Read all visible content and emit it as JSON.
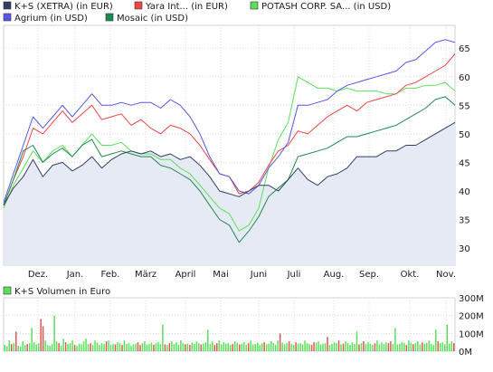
{
  "chart_data": [
    {
      "type": "line",
      "legend": [
        {
          "name": "K+S (XETRA) (in EUR)",
          "color": "#2f3e66"
        },
        {
          "name": "Yara Int... (in EUR)",
          "color": "#ee4444"
        },
        {
          "name": "POTASH CORP. SA... (in USD)",
          "color": "#5ae05a"
        },
        {
          "name": "Agrium (in USD)",
          "color": "#5555e8"
        },
        {
          "name": "Mosaic (in USD)",
          "color": "#1e8a4e"
        }
      ],
      "x_ticks": [
        "Dez.",
        "Jan.",
        "Feb.",
        "März",
        "April",
        "Mai",
        "Juni",
        "Juli",
        "Aug.",
        "Sep.",
        "Okt.",
        "Nov."
      ],
      "y_ticks": [
        "30",
        "35",
        "40",
        "45",
        "50",
        "55",
        "60",
        "65"
      ],
      "ylim": [
        27,
        69
      ],
      "grid": true,
      "series": [
        {
          "name": "K+S (XETRA) (in EUR)",
          "color": "#2f3e66",
          "area_fill": true,
          "values": [
            37.5,
            40.5,
            42.5,
            45.5,
            42.5,
            44.5,
            45,
            43.5,
            44.5,
            46,
            44,
            45.5,
            46.5,
            47,
            46.5,
            47,
            46,
            46.5,
            45.5,
            46,
            44.5,
            42.5,
            40,
            39.5,
            39,
            40,
            41,
            41,
            40,
            42,
            44,
            42,
            41,
            42.5,
            43,
            44,
            46,
            46,
            46,
            47,
            47,
            48,
            48,
            49,
            50,
            51,
            52
          ]
        },
        {
          "name": "Yara Int... (in EUR)",
          "color": "#ee4444",
          "values": [
            37.5,
            42,
            46,
            51,
            50,
            52,
            54,
            52,
            53.5,
            55,
            52.5,
            53,
            53.5,
            51.5,
            52.5,
            51,
            50,
            51.5,
            51,
            50,
            48,
            45.5,
            43,
            42.5,
            39.5,
            40,
            41.5,
            44.5,
            47,
            48,
            50.5,
            50,
            51.5,
            53,
            54,
            55,
            54,
            55.5,
            56,
            56.5,
            57,
            58.5,
            59,
            60,
            61,
            62,
            64
          ]
        },
        {
          "name": "POTASH CORP. SA... (in USD)",
          "color": "#5ae05a",
          "values": [
            37,
            41,
            44,
            47,
            45,
            47,
            48,
            46,
            48,
            50,
            48,
            48,
            48.5,
            47,
            46.5,
            46.5,
            45.5,
            45.5,
            44,
            43,
            41,
            39,
            37,
            36,
            33,
            34,
            37,
            44,
            49,
            52,
            60,
            59,
            58,
            58,
            57.5,
            58,
            57.5,
            57.5,
            57.5,
            57,
            57,
            58,
            58,
            58.5,
            58.5,
            59,
            57.5
          ]
        },
        {
          "name": "Agrium (in USD)",
          "color": "#5555e8",
          "values": [
            38,
            43,
            48,
            53,
            51,
            53,
            55,
            53,
            55,
            57,
            55,
            55,
            55.5,
            55,
            55.5,
            55.5,
            54.5,
            56,
            55,
            53,
            50,
            46,
            43,
            42.5,
            40,
            39.5,
            41,
            44,
            46,
            48.5,
            55,
            55,
            55.5,
            56,
            57.5,
            58.5,
            59,
            59.5,
            60,
            60.5,
            61,
            62.5,
            63,
            64.5,
            66,
            66.5,
            66
          ]
        },
        {
          "name": "Mosaic (in USD)",
          "color": "#1e8a4e",
          "values": [
            37.5,
            42,
            47,
            48,
            45,
            46.5,
            47.5,
            46,
            48,
            49,
            46,
            46.5,
            47,
            46.5,
            46,
            46,
            44.5,
            44,
            43,
            42,
            40,
            37.5,
            35,
            34,
            31,
            33,
            35.5,
            39,
            40.5,
            42,
            46,
            46.5,
            47,
            47.5,
            48.5,
            49.5,
            49.5,
            50,
            50.5,
            51,
            51.5,
            52.5,
            53.5,
            54.5,
            56,
            56.5,
            55
          ]
        }
      ]
    },
    {
      "type": "bar",
      "legend": [
        {
          "name": "K+S Volumen in Euro",
          "color": "#5ae05a"
        }
      ],
      "y_ticks": [
        "0M",
        "100M",
        "200M",
        "300M"
      ],
      "ylim": [
        0,
        300
      ],
      "grid": true,
      "series": [
        {
          "name": "K+S Volumen in Euro",
          "values": [
            35,
            28,
            60,
            40,
            45,
            110,
            30,
            25,
            55,
            35,
            40,
            45,
            130,
            50,
            38,
            45,
            180,
            140,
            60,
            35,
            30,
            40,
            200,
            55,
            45,
            32,
            70,
            50,
            40,
            45,
            60,
            35,
            30,
            42,
            38,
            55,
            70,
            40,
            45,
            35,
            60,
            50,
            35,
            45,
            40,
            55,
            60,
            35,
            40,
            38,
            50,
            45,
            35,
            60,
            40,
            45,
            30,
            38,
            42,
            50,
            35,
            45,
            55,
            38,
            40,
            48,
            36,
            45,
            50,
            40,
            150,
            38,
            35,
            45,
            55,
            40,
            50,
            35,
            60,
            45,
            38,
            42,
            35,
            48,
            40,
            55,
            45,
            38,
            42,
            50,
            120,
            40,
            55,
            35,
            45,
            60,
            38,
            50,
            42,
            45,
            35,
            40,
            55,
            48,
            38,
            42,
            50,
            35,
            45,
            60,
            38,
            40,
            48,
            35,
            45,
            50,
            38,
            42,
            55,
            45,
            35,
            60,
            100,
            48,
            38,
            45,
            55,
            40,
            35,
            50,
            42,
            45,
            38,
            60,
            45,
            40,
            35,
            50,
            48,
            55,
            38,
            42,
            45,
            80,
            35,
            40,
            50,
            45,
            60,
            38,
            42,
            55,
            45,
            35,
            50,
            40,
            110,
            38,
            45,
            55,
            40,
            50,
            42,
            35,
            45,
            60,
            38,
            48,
            40,
            50,
            45,
            55,
            40,
            130,
            38,
            42,
            50,
            45,
            35,
            60,
            48,
            40,
            45,
            55,
            38,
            50,
            42,
            45,
            60,
            40,
            35,
            120,
            55,
            45,
            50,
            38,
            150,
            42,
            55,
            45
          ]
        }
      ]
    }
  ]
}
